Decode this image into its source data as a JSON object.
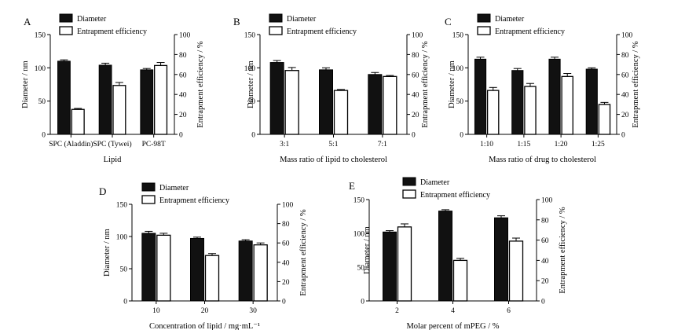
{
  "figure": {
    "legend": {
      "diameter": "Diameter",
      "ee": "Entrapment efficiency"
    },
    "left_axis_label": "Diameter / nm",
    "right_axis_label": "Entrapment efficiency / %",
    "colors": {
      "diameter": "#111111",
      "ee": "#ffffff",
      "stroke": "#000000"
    }
  },
  "chart_data": [
    {
      "type": "bar",
      "panel": "A",
      "xlabel": "Lipid",
      "categories": [
        "SPC (Aladdin)",
        "SPC (Tywei)",
        "PC-98T"
      ],
      "ylabel": "Diameter / nm",
      "ylim": [
        0,
        150
      ],
      "yticks": [
        0,
        50,
        100,
        150
      ],
      "y2label": "Entrapment efficiency / %",
      "y2lim": [
        0,
        100
      ],
      "y2ticks": [
        0,
        20,
        40,
        60,
        80,
        100
      ],
      "series": [
        {
          "name": "Diameter",
          "axis": "left",
          "values": [
            110,
            104,
            97
          ],
          "errors": [
            2,
            3,
            2
          ]
        },
        {
          "name": "Entrapment efficiency",
          "axis": "right",
          "values": [
            25,
            49,
            69
          ],
          "errors": [
            1,
            3,
            3
          ]
        }
      ]
    },
    {
      "type": "bar",
      "panel": "B",
      "xlabel": "Mass ratio of lipid to cholesterol",
      "categories": [
        "3:1",
        "5:1",
        "7:1"
      ],
      "ylabel": "Diameter / nm",
      "ylim": [
        0,
        150
      ],
      "yticks": [
        0,
        50,
        100,
        150
      ],
      "y2label": "Entrapment efficiency / %",
      "y2lim": [
        0,
        100
      ],
      "y2ticks": [
        0,
        20,
        40,
        60,
        80,
        100
      ],
      "series": [
        {
          "name": "Diameter",
          "axis": "left",
          "values": [
            108,
            97,
            90
          ],
          "errors": [
            3,
            3,
            3
          ]
        },
        {
          "name": "Entrapment efficiency",
          "axis": "right",
          "values": [
            64,
            44,
            58
          ],
          "errors": [
            3,
            1,
            1
          ]
        }
      ]
    },
    {
      "type": "bar",
      "panel": "C",
      "xlabel": "Mass ratio of drug to cholesterol",
      "categories": [
        "1:10",
        "1:15",
        "1:20",
        "1:25"
      ],
      "ylabel": "Diameter / nm",
      "ylim": [
        0,
        150
      ],
      "yticks": [
        0,
        50,
        100,
        150
      ],
      "y2label": "Entrapment efficiency / %",
      "y2lim": [
        0,
        100
      ],
      "y2ticks": [
        0,
        20,
        40,
        60,
        80,
        100
      ],
      "series": [
        {
          "name": "Diameter",
          "axis": "left",
          "values": [
            113,
            96,
            113,
            98
          ],
          "errors": [
            3,
            3,
            3,
            2
          ]
        },
        {
          "name": "Entrapment efficiency",
          "axis": "right",
          "values": [
            44,
            48,
            58,
            30
          ],
          "errors": [
            3,
            3,
            3,
            2
          ]
        }
      ]
    },
    {
      "type": "bar",
      "panel": "D",
      "xlabel": "Concentration of lipid / mg·mL⁻¹",
      "categories": [
        "10",
        "20",
        "30"
      ],
      "ylabel": "Diameter / nm",
      "ylim": [
        0,
        150
      ],
      "yticks": [
        0,
        50,
        100,
        150
      ],
      "y2label": "Entrapment efficiency / %",
      "y2lim": [
        0,
        100
      ],
      "y2ticks": [
        0,
        20,
        40,
        60,
        80,
        100
      ],
      "series": [
        {
          "name": "Diameter",
          "axis": "left",
          "values": [
            105,
            97,
            93
          ],
          "errors": [
            3,
            2,
            2
          ]
        },
        {
          "name": "Entrapment efficiency",
          "axis": "right",
          "values": [
            68,
            47,
            58
          ],
          "errors": [
            2,
            2,
            2
          ]
        }
      ]
    },
    {
      "type": "bar",
      "panel": "E",
      "xlabel": "Molar percent of mPEG / %",
      "categories": [
        "2",
        "4",
        "6"
      ],
      "ylabel": "Diameter / nm",
      "ylim": [
        0,
        150
      ],
      "yticks": [
        0,
        50,
        100,
        150
      ],
      "y2label": "Entrapment efficiency / %",
      "y2lim": [
        0,
        100
      ],
      "y2ticks": [
        0,
        20,
        40,
        60,
        80,
        100
      ],
      "series": [
        {
          "name": "Diameter",
          "axis": "left",
          "values": [
            102,
            133,
            123
          ],
          "errors": [
            2,
            2,
            3
          ]
        },
        {
          "name": "Entrapment efficiency",
          "axis": "right",
          "values": [
            73,
            40,
            59
          ],
          "errors": [
            3,
            2,
            3
          ]
        }
      ]
    }
  ]
}
